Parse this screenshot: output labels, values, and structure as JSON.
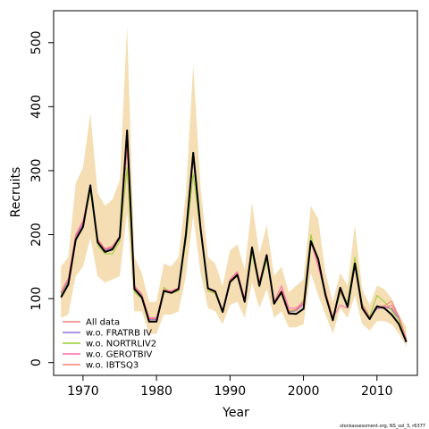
{
  "chart_data": {
    "type": "line",
    "title": "",
    "xlabel": "Year",
    "ylabel": "Recruits",
    "xlim": [
      1966,
      2015.5
    ],
    "ylim": [
      -20,
      550
    ],
    "xticks": [
      1970,
      1980,
      1990,
      2000,
      2010
    ],
    "yticks": [
      0,
      100,
      200,
      300,
      400,
      500
    ],
    "grid": false,
    "legend_position": "bottom-left",
    "credit": "stockassessment.org, NS_sol_3, r6377",
    "years": [
      1967,
      1968,
      1969,
      1970,
      1971,
      1972,
      1973,
      1974,
      1975,
      1976,
      1977,
      1978,
      1979,
      1980,
      1981,
      1982,
      1983,
      1984,
      1985,
      1986,
      1987,
      1988,
      1989,
      1990,
      1991,
      1992,
      1993,
      1994,
      1995,
      1996,
      1997,
      1998,
      1999,
      2000,
      2001,
      2002,
      2003,
      2004,
      2005,
      2006,
      2007,
      2008,
      2009,
      2010,
      2011,
      2012,
      2013,
      2014
    ],
    "band": {
      "color": "#f5deb3",
      "upper": [
        150,
        165,
        280,
        305,
        390,
        265,
        245,
        255,
        285,
        525,
        165,
        140,
        95,
        95,
        155,
        150,
        165,
        265,
        465,
        275,
        165,
        155,
        120,
        175,
        185,
        145,
        250,
        170,
        215,
        135,
        150,
        110,
        120,
        130,
        245,
        225,
        140,
        95,
        140,
        120,
        215,
        115,
        90,
        120,
        115,
        100,
        75,
        55
      ],
      "lower": [
        70,
        75,
        135,
        150,
        195,
        135,
        125,
        130,
        135,
        235,
        80,
        80,
        45,
        45,
        75,
        75,
        80,
        135,
        230,
        140,
        85,
        80,
        60,
        90,
        95,
        70,
        125,
        85,
        115,
        70,
        80,
        55,
        55,
        60,
        140,
        105,
        75,
        45,
        85,
        70,
        105,
        60,
        50,
        65,
        65,
        60,
        45,
        25
      ]
    },
    "series": [
      {
        "name": "All data",
        "color": "#f08080",
        "width": 1,
        "values": [
          108,
          130,
          195,
          218,
          273,
          190,
          175,
          180,
          195,
          335,
          118,
          105,
          68,
          68,
          113,
          110,
          115,
          200,
          318,
          212,
          115,
          110,
          80,
          128,
          140,
          98,
          178,
          125,
          165,
          93,
          113,
          80,
          82,
          92,
          186,
          160,
          110,
          70,
          110,
          88,
          155,
          90,
          70,
          85,
          88,
          85,
          70,
          35
        ]
      },
      {
        "name": "w.o. FRATRB IV",
        "color": "#9370db",
        "width": 1,
        "values": [
          106,
          128,
          196,
          217,
          274,
          189,
          176,
          179,
          196,
          336,
          117,
          104,
          67,
          67,
          112,
          109,
          116,
          201,
          319,
          211,
          116,
          111,
          79,
          127,
          139,
          97,
          179,
          124,
          166,
          92,
          114,
          79,
          81,
          91,
          187,
          159,
          111,
          69,
          111,
          87,
          156,
          89,
          71,
          84,
          87,
          84,
          69,
          34
        ]
      },
      {
        "name": "w.o. NORTRLIV2",
        "color": "#9acd32",
        "width": 1,
        "values": [
          105,
          125,
          190,
          213,
          268,
          183,
          170,
          170,
          190,
          305,
          110,
          100,
          65,
          65,
          118,
          108,
          112,
          190,
          295,
          205,
          112,
          108,
          78,
          125,
          135,
          95,
          170,
          118,
          160,
          95,
          112,
          80,
          82,
          98,
          200,
          150,
          105,
          68,
          108,
          95,
          165,
          92,
          72,
          105,
          95,
          82,
          65,
          38
        ]
      },
      {
        "name": "w.o. GEROTBIV",
        "color": "#ff69b4",
        "width": 1,
        "values": [
          110,
          132,
          200,
          222,
          276,
          193,
          178,
          182,
          198,
          340,
          120,
          107,
          70,
          70,
          114,
          112,
          117,
          205,
          322,
          215,
          117,
          112,
          81,
          130,
          142,
          100,
          180,
          127,
          168,
          95,
          120,
          85,
          85,
          95,
          190,
          150,
          108,
          70,
          90,
          85,
          150,
          88,
          68,
          88,
          85,
          90,
          72,
          36
        ]
      },
      {
        "name": "w.o. IBTSQ3",
        "color": "#fa8072",
        "width": 1,
        "values": [
          109,
          131,
          198,
          220,
          275,
          191,
          177,
          181,
          197,
          338,
          119,
          106,
          69,
          69,
          114,
          111,
          116,
          203,
          320,
          213,
          116,
          111,
          80,
          129,
          141,
          99,
          179,
          126,
          166,
          94,
          114,
          81,
          83,
          93,
          188,
          158,
          111,
          71,
          111,
          89,
          157,
          91,
          71,
          86,
          89,
          96,
          71,
          36
        ]
      },
      {
        "name": "",
        "color": "#000000",
        "width": 2,
        "values": [
          102,
          122,
          192,
          212,
          277,
          188,
          173,
          177,
          196,
          363,
          115,
          102,
          64,
          64,
          112,
          109,
          115,
          200,
          328,
          210,
          116,
          111,
          79,
          126,
          137,
          95,
          180,
          120,
          168,
          92,
          110,
          77,
          76,
          84,
          190,
          162,
          105,
          66,
          117,
          87,
          155,
          85,
          68,
          88,
          85,
          75,
          60,
          32
        ]
      }
    ]
  }
}
